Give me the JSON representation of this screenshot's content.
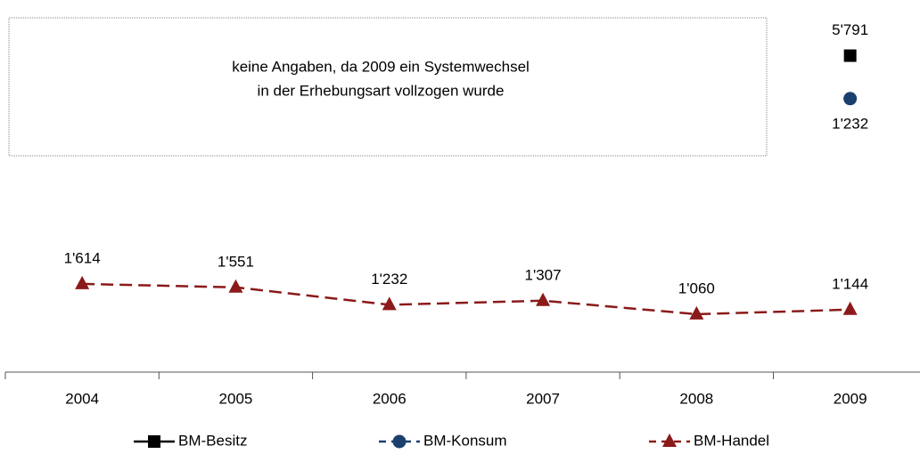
{
  "chart_data": {
    "type": "line",
    "annotation": [
      "keine Angaben, da 2009 ein Systemwechsel",
      "in der Erhebungsart vollzogen wurde"
    ],
    "categories": [
      "2004",
      "2005",
      "2006",
      "2007",
      "2008",
      "2009"
    ],
    "series": [
      {
        "name": "BM-Besitz",
        "color": "#000000",
        "marker": "square",
        "dash": "solid",
        "values": [
          null,
          null,
          null,
          null,
          null,
          5791
        ],
        "value_labels": [
          null,
          null,
          null,
          null,
          null,
          "5'791"
        ]
      },
      {
        "name": "BM-Konsum",
        "color": "#1b3f6e",
        "marker": "circle",
        "dash": "dashed",
        "axis": "y2",
        "values": [
          null,
          null,
          null,
          null,
          null,
          1232
        ],
        "value_labels": [
          null,
          null,
          null,
          null,
          null,
          "1'232"
        ]
      },
      {
        "name": "BM-Handel",
        "color": "#8b1a1a",
        "marker": "triangle",
        "dash": "dashed",
        "values": [
          1614,
          1551,
          1232,
          1307,
          1060,
          1144
        ],
        "value_labels": [
          "1'614",
          "1'551",
          "1'232",
          "1'307",
          "1'060",
          "1'144"
        ]
      }
    ],
    "ylim": [
      0,
      6500
    ],
    "y2lim": [
      0,
      1600
    ],
    "legend": "bottom"
  }
}
